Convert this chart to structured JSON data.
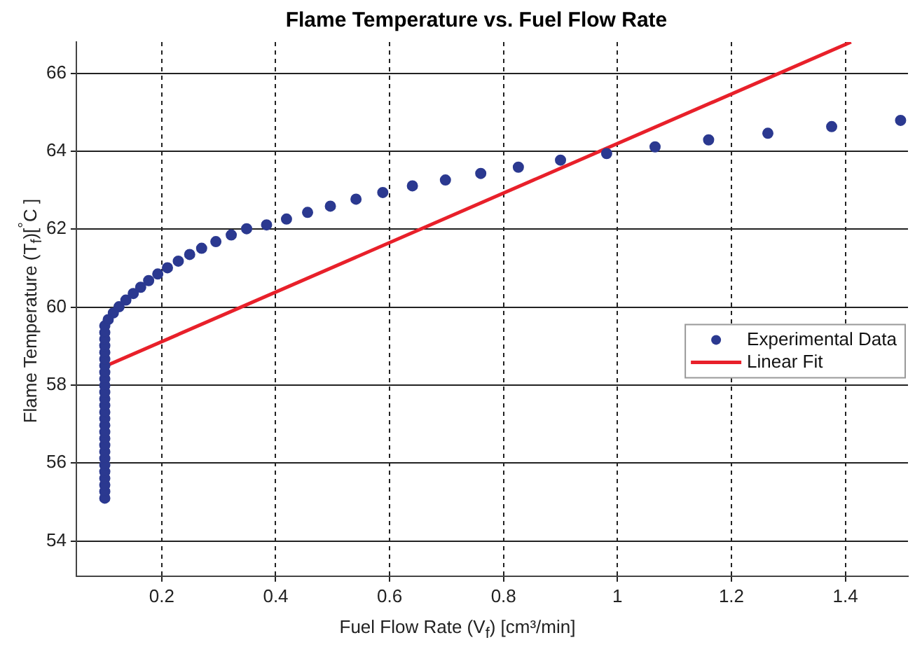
{
  "chart_data": {
    "type": "scatter",
    "title": "Flame Temperature vs. Fuel Flow Rate",
    "xlabel": "Fuel Flow Rate (V$_{f}$) [cm³/min]",
    "ylabel": "Flame Temperature (T$_{f}$)[$^{°}$C ]",
    "xlim": [
      0.05,
      1.51
    ],
    "xticks": [
      0.2,
      0.4,
      0.6,
      0.8,
      1,
      1.2,
      1.4
    ],
    "ylim": [
      53.1,
      66.8
    ],
    "yticks": [
      54,
      56,
      58,
      60,
      62,
      64,
      66
    ],
    "grid": true,
    "legend": "right",
    "series": [
      {
        "name": "Experimental Data",
        "marker": "circle",
        "color": "#2b3990",
        "x": [
          0.1,
          0.1,
          0.1,
          0.1,
          0.1,
          0.1,
          0.1,
          0.1,
          0.1,
          0.1,
          0.1,
          0.1,
          0.1,
          0.1,
          0.1,
          0.1,
          0.1,
          0.1,
          0.1,
          0.1,
          0.1,
          0.1,
          0.1,
          0.1,
          0.1,
          0.1,
          0.1,
          0.106,
          0.115,
          0.125,
          0.137,
          0.15,
          0.163,
          0.177,
          0.193,
          0.21,
          0.229,
          0.249,
          0.27,
          0.295,
          0.322,
          0.349,
          0.384,
          0.419,
          0.456,
          0.496,
          0.541,
          0.588,
          0.64,
          0.698,
          0.76,
          0.826,
          0.9,
          0.981,
          1.066,
          1.16,
          1.264,
          1.376,
          1.497
        ],
        "values": [
          55.1,
          55.27,
          55.44,
          55.61,
          55.78,
          55.95,
          56.12,
          56.29,
          56.46,
          56.63,
          56.8,
          56.97,
          57.14,
          57.31,
          57.48,
          57.65,
          57.82,
          57.99,
          58.16,
          58.33,
          58.5,
          58.67,
          58.84,
          59.01,
          59.18,
          59.35,
          59.52,
          59.68,
          59.85,
          60.01,
          60.18,
          60.35,
          60.51,
          60.68,
          60.85,
          61.01,
          61.18,
          61.35,
          61.51,
          61.68,
          61.85,
          62.01,
          62.11,
          62.26,
          62.43,
          62.59,
          62.77,
          62.94,
          63.11,
          63.26,
          63.43,
          63.59,
          63.77,
          63.94,
          64.11,
          64.29,
          64.46,
          64.63,
          64.79
        ]
      },
      {
        "name": "Linear Fit",
        "type": "line",
        "marker": "none",
        "color": "#e8202a",
        "line_style": "solid",
        "x": [
          0.1,
          1.41
        ],
        "values": [
          58.48,
          66.8
        ]
      }
    ]
  }
}
